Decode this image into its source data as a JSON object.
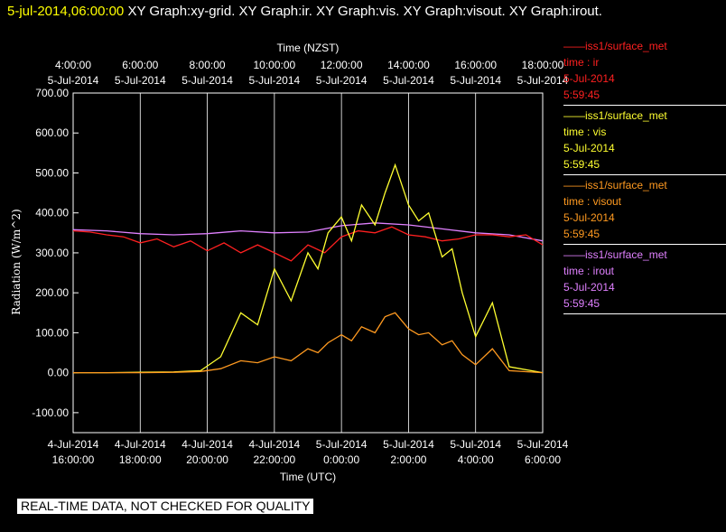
{
  "header": {
    "timestamp": "5-jul-2014,06:00:00",
    "titles": "XY Graph:xy-grid.  XY Graph:ir.  XY Graph:vis.  XY Graph:visout.  XY Graph:irout."
  },
  "footer": {
    "disclaimer": "REAL-TIME DATA, NOT CHECKED FOR QUALITY"
  },
  "legend": [
    {
      "dataset": "iss1/surface_met",
      "variable": "time : ir",
      "date": "5-Jul-2014",
      "time": "5:59:45",
      "color": "#ff2020"
    },
    {
      "dataset": "iss1/surface_met",
      "variable": "time : vis",
      "date": "5-Jul-2014",
      "time": "5:59:45",
      "color": "#ffff30"
    },
    {
      "dataset": "iss1/surface_met",
      "variable": "time : visout",
      "date": "5-Jul-2014",
      "time": "5:59:45",
      "color": "#ff9a20"
    },
    {
      "dataset": "iss1/surface_met",
      "variable": "time : irout",
      "date": "5-Jul-2014",
      "time": "5:59:45",
      "color": "#e080ff"
    }
  ],
  "chart_data": {
    "type": "line",
    "top_axis_label": "Time (NZST)",
    "xlabel": "Time (UTC)",
    "ylabel": "Radiation  (W/m^2)",
    "xlim": [
      0,
      14
    ],
    "ylim": [
      -150,
      700
    ],
    "grid": true,
    "x_unit": "hours after 4-Jul-2014 16:00 UTC",
    "top_ticks": [
      {
        "x": 0,
        "time": "4:00:00",
        "date": "5-Jul-2014"
      },
      {
        "x": 2,
        "time": "6:00:00",
        "date": "5-Jul-2014"
      },
      {
        "x": 4,
        "time": "8:00:00",
        "date": "5-Jul-2014"
      },
      {
        "x": 6,
        "time": "10:00:00",
        "date": "5-Jul-2014"
      },
      {
        "x": 8,
        "time": "12:00:00",
        "date": "5-Jul-2014"
      },
      {
        "x": 10,
        "time": "14:00:00",
        "date": "5-Jul-2014"
      },
      {
        "x": 12,
        "time": "16:00:00",
        "date": "5-Jul-2014"
      },
      {
        "x": 14,
        "time": "18:00:00",
        "date": "5-Jul-2014"
      }
    ],
    "bottom_ticks": [
      {
        "x": 0,
        "date": "4-Jul-2014",
        "time": "16:00:00"
      },
      {
        "x": 2,
        "date": "4-Jul-2014",
        "time": "18:00:00"
      },
      {
        "x": 4,
        "date": "4-Jul-2014",
        "time": "20:00:00"
      },
      {
        "x": 6,
        "date": "4-Jul-2014",
        "time": "22:00:00"
      },
      {
        "x": 8,
        "date": "5-Jul-2014",
        "time": "0:00:00"
      },
      {
        "x": 10,
        "date": "5-Jul-2014",
        "time": "2:00:00"
      },
      {
        "x": 12,
        "date": "5-Jul-2014",
        "time": "4:00:00"
      },
      {
        "x": 14,
        "date": "5-Jul-2014",
        "time": "6:00:00"
      }
    ],
    "y_ticks": [
      {
        "v": 700,
        "label": "700.00"
      },
      {
        "v": 600,
        "label": "600.00"
      },
      {
        "v": 500,
        "label": "500.00"
      },
      {
        "v": 400,
        "label": "400.00"
      },
      {
        "v": 300,
        "label": "300.00"
      },
      {
        "v": 200,
        "label": "200.00"
      },
      {
        "v": 100,
        "label": "100.00"
      },
      {
        "v": 0,
        "label": "0.00"
      },
      {
        "v": -100,
        "label": "-100.00"
      }
    ],
    "series": [
      {
        "name": "time : irout",
        "color": "#e080ff",
        "x": [
          0,
          1,
          2,
          3,
          4,
          5,
          6,
          7,
          8,
          9,
          10,
          11,
          12,
          13,
          14
        ],
        "y": [
          358,
          355,
          348,
          345,
          348,
          355,
          350,
          352,
          368,
          375,
          370,
          360,
          350,
          345,
          330
        ]
      },
      {
        "name": "time : ir",
        "color": "#ff2020",
        "x": [
          0,
          0.5,
          1,
          1.5,
          2,
          2.5,
          3,
          3.5,
          4,
          4.5,
          5,
          5.5,
          6,
          6.5,
          7,
          7.5,
          8,
          8.5,
          9,
          9.5,
          10,
          10.5,
          11,
          11.5,
          12,
          12.5,
          13,
          13.5,
          14
        ],
        "y": [
          355,
          352,
          345,
          340,
          325,
          335,
          315,
          330,
          305,
          325,
          300,
          320,
          300,
          280,
          320,
          300,
          340,
          355,
          350,
          365,
          345,
          340,
          330,
          335,
          345,
          345,
          340,
          345,
          320
        ]
      },
      {
        "name": "time : vis",
        "color": "#ffff30",
        "x": [
          0,
          1,
          2,
          3,
          3.8,
          4.4,
          5,
          5.5,
          6,
          6.5,
          7,
          7.3,
          7.6,
          8,
          8.3,
          8.6,
          9,
          9.3,
          9.6,
          10,
          10.3,
          10.6,
          11,
          11.3,
          11.6,
          12,
          12.5,
          13,
          14
        ],
        "y": [
          0,
          0,
          1,
          2,
          5,
          40,
          150,
          120,
          260,
          180,
          300,
          260,
          350,
          390,
          330,
          420,
          370,
          450,
          520,
          420,
          380,
          400,
          290,
          310,
          200,
          90,
          175,
          15,
          0
        ]
      },
      {
        "name": "time : visout",
        "color": "#ff9a20",
        "x": [
          0,
          1,
          2,
          3,
          3.8,
          4.4,
          5,
          5.5,
          6,
          6.5,
          7,
          7.3,
          7.6,
          8,
          8.3,
          8.6,
          9,
          9.3,
          9.6,
          10,
          10.3,
          10.6,
          11,
          11.3,
          11.6,
          12,
          12.5,
          13,
          14
        ],
        "y": [
          0,
          0,
          0,
          1,
          3,
          10,
          30,
          25,
          40,
          30,
          60,
          50,
          75,
          95,
          80,
          115,
          100,
          140,
          150,
          110,
          95,
          100,
          70,
          80,
          45,
          20,
          60,
          5,
          0
        ]
      }
    ]
  }
}
